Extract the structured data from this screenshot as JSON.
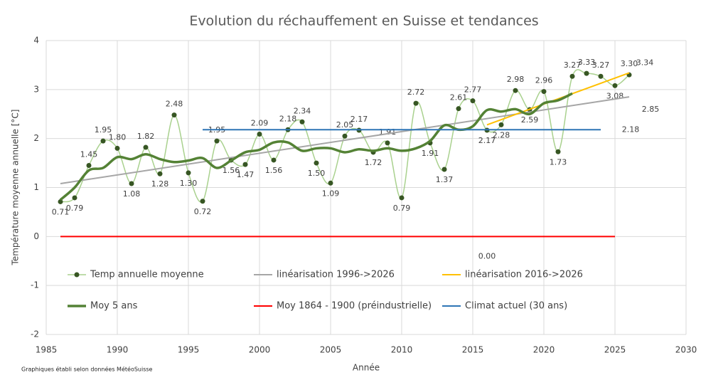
{
  "chart_data": {
    "type": "line",
    "title": "Evolution du réchauffement en Suisse et tendances",
    "x_label": "Année",
    "y_label": "Température moyenne annuelle [°C]",
    "footnote": "Graphiques établi selon données MétéoSuisse",
    "xlim": [
      1985,
      2030
    ],
    "xticks": [
      1985,
      1990,
      1995,
      2000,
      2005,
      2010,
      2015,
      2020,
      2025,
      2030
    ],
    "ylim": [
      -2,
      4
    ],
    "yticks": [
      -2,
      -1,
      0,
      1,
      2,
      3,
      4
    ],
    "grid": true,
    "series": [
      {
        "name": "Temp annuelle moyenne",
        "color": "#a9d18e",
        "marker_color": "#375623",
        "markers": true,
        "smooth": true,
        "width": 1.5,
        "x": [
          1986,
          1987,
          1988,
          1989,
          1990,
          1991,
          1992,
          1993,
          1994,
          1995,
          1996,
          1997,
          1998,
          1999,
          2000,
          2001,
          2002,
          2003,
          2004,
          2005,
          2006,
          2007,
          2008,
          2009,
          2010,
          2011,
          2012,
          2013,
          2014,
          2015,
          2016,
          2017,
          2018,
          2019,
          2020,
          2021,
          2022,
          2023,
          2024,
          2025,
          2026
        ],
        "values": [
          0.71,
          0.79,
          1.45,
          1.95,
          1.8,
          1.08,
          1.82,
          1.28,
          2.48,
          1.3,
          0.72,
          1.95,
          1.56,
          1.47,
          2.09,
          1.56,
          2.18,
          2.34,
          1.5,
          1.09,
          2.05,
          2.17,
          1.72,
          1.91,
          0.79,
          2.72,
          1.91,
          1.37,
          2.61,
          2.77,
          2.17,
          2.28,
          2.98,
          2.59,
          2.96,
          1.73,
          3.27,
          3.33,
          3.27,
          3.08,
          3.3
        ],
        "value_labels": [
          "0.71",
          "0.79",
          "1.45",
          "1.95",
          "1.80",
          "1.08",
          "1.82",
          "1.28",
          "2.48",
          "1.30",
          "0.72",
          "1.95",
          "1.56",
          "1.47",
          "2.09",
          "1.56",
          "2.18",
          "2.34",
          "1.50",
          "1.09",
          "2.05",
          "2.17",
          "1.72",
          "1.91",
          "0.79",
          "2.72",
          "1.91",
          "1.37",
          "2.61",
          "2.77",
          "2.17",
          "2.28",
          "2.98",
          "2.59",
          "2.96",
          "1.73",
          "3.27",
          "3.33",
          "3.27",
          "3.08",
          "3.30"
        ]
      },
      {
        "name": "linéarisation 1996->2026",
        "color": "#a6a6a6",
        "width": 2,
        "x": [
          1986,
          2026
        ],
        "values": [
          1.08,
          2.85
        ],
        "value_labels": [
          null,
          "2.85"
        ]
      },
      {
        "name": "linéarisation 2016->2026",
        "color": "#ffc000",
        "width": 2,
        "x": [
          2016,
          2026
        ],
        "values": [
          2.28,
          3.34
        ],
        "value_labels": [
          null,
          "3.34"
        ]
      },
      {
        "name": "Moy 5 ans",
        "color": "#548235",
        "smooth": true,
        "width": 3.5,
        "x": [
          1986,
          1987,
          1988,
          1989,
          1990,
          1991,
          1992,
          1993,
          1994,
          1995,
          1996,
          1997,
          1998,
          1999,
          2000,
          2001,
          2002,
          2003,
          2004,
          2005,
          2006,
          2007,
          2008,
          2009,
          2010,
          2011,
          2012,
          2013,
          2014,
          2015,
          2016,
          2017,
          2018,
          2019,
          2020,
          2021,
          2022
        ],
        "values": [
          0.75,
          1.0,
          1.35,
          1.4,
          1.62,
          1.58,
          1.68,
          1.58,
          1.52,
          1.55,
          1.6,
          1.4,
          1.55,
          1.72,
          1.77,
          1.92,
          1.92,
          1.75,
          1.8,
          1.8,
          1.72,
          1.78,
          1.75,
          1.8,
          1.75,
          1.8,
          1.95,
          2.27,
          2.18,
          2.25,
          2.58,
          2.55,
          2.6,
          2.5,
          2.72,
          2.78,
          2.92
        ]
      },
      {
        "name": "Moy 1864 - 1900 (préindustrielle)",
        "color": "#ff0000",
        "width": 2,
        "x": [
          1986,
          2025
        ],
        "values": [
          0,
          0
        ],
        "value_labels": [
          null,
          "0.00"
        ]
      },
      {
        "name": "Climat actuel (30 ans)",
        "color": "#2e75b6",
        "width": 2,
        "x": [
          1996,
          2024
        ],
        "values": [
          2.18,
          2.18
        ],
        "value_labels": [
          null,
          "2.18"
        ]
      }
    ]
  }
}
